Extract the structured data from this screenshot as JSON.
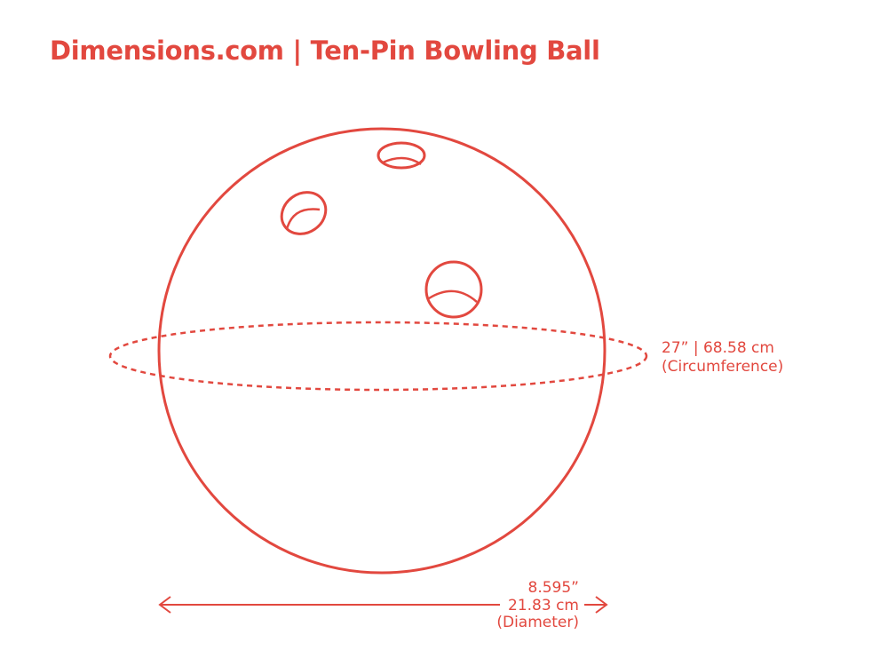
{
  "title": "Dimensions.com | Ten-Pin Bowling Ball",
  "colors": {
    "accent": "#e2483f",
    "background": "#ffffff"
  },
  "dimensions": {
    "circumference": {
      "value_line": "27” | 68.58 cm",
      "label": "(Circumference)"
    },
    "diameter": {
      "imperial": "8.595”",
      "metric": "21.83 cm",
      "label": "(Diameter)"
    }
  }
}
